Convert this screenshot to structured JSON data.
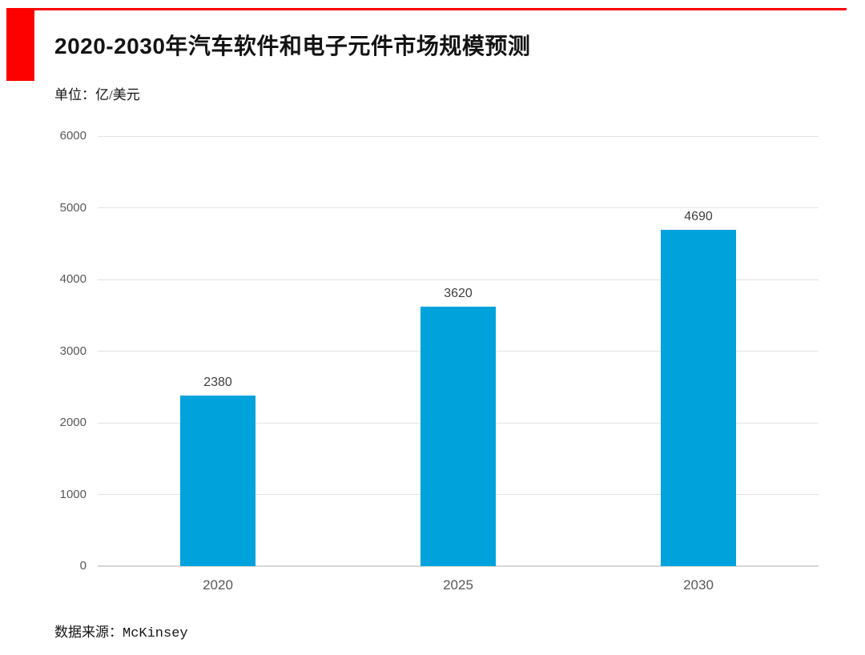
{
  "colors": {
    "accent_red": "#fd0000",
    "bar_blue": "#00a2dc",
    "gridline": "#e2e2e2",
    "axis_text": "#595959",
    "value_text": "#3f3f3f"
  },
  "chart_data": {
    "type": "bar",
    "title": "2020-2030年汽车软件和电子元件市场规模预测",
    "unit_label": "单位：亿/美元",
    "categories": [
      "2020",
      "2025",
      "2030"
    ],
    "values": [
      2380,
      3620,
      4690
    ],
    "value_labels": [
      "2380",
      "3620",
      "4690"
    ],
    "bar_color": "#00a2dc",
    "ylim": [
      0,
      6000
    ],
    "ytick_step": 1000,
    "yticks": [
      0,
      1000,
      2000,
      3000,
      4000,
      5000,
      6000
    ],
    "grid": true,
    "legend": "none",
    "xlabel": "",
    "ylabel": "单位：亿/美元",
    "source": "数据来源：McKinsey"
  }
}
